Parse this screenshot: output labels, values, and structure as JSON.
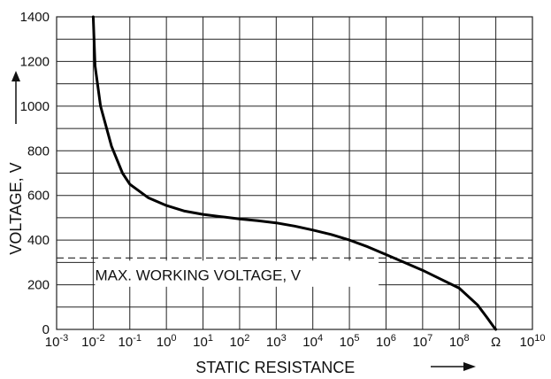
{
  "chart_data": {
    "type": "line",
    "title": "",
    "xlabel": "STATIC RESISTANCE",
    "ylabel": "VOLTAGE, V",
    "x_scale": "log",
    "xlim": [
      -3,
      10
    ],
    "ylim": [
      0,
      1400
    ],
    "grid": true,
    "y_ticks": [
      "0",
      "200",
      "400",
      "600",
      "800",
      "1000",
      "1200",
      "1400"
    ],
    "x_ticks": [
      {
        "base": "10",
        "exp": "-3"
      },
      {
        "base": "10",
        "exp": "-2"
      },
      {
        "base": "10",
        "exp": "-1"
      },
      {
        "base": "10",
        "exp": "0"
      },
      {
        "base": "10",
        "exp": "1"
      },
      {
        "base": "10",
        "exp": "2"
      },
      {
        "base": "10",
        "exp": "3"
      },
      {
        "base": "10",
        "exp": "4"
      },
      {
        "base": "10",
        "exp": "5"
      },
      {
        "base": "10",
        "exp": "6"
      },
      {
        "base": "10",
        "exp": "7"
      },
      {
        "base": "10",
        "exp": "8"
      },
      {
        "base": "Ω",
        "exp": ""
      },
      {
        "base": "10",
        "exp": "10"
      }
    ],
    "series": [
      {
        "x": [
          -2.0,
          -1.95,
          -1.8,
          -1.5,
          -1.2,
          -1.0,
          -0.5,
          0.0,
          0.5,
          1.0,
          1.5,
          2.0,
          2.5,
          3.0,
          3.5,
          4.0,
          4.5,
          5.0,
          5.5,
          6.0,
          6.5,
          7.0,
          7.5,
          8.0,
          8.5,
          8.75,
          8.95,
          9.0
        ],
        "y": [
          1400,
          1180,
          1000,
          820,
          700,
          650,
          590,
          555,
          530,
          515,
          505,
          495,
          487,
          477,
          463,
          445,
          425,
          400,
          370,
          335,
          300,
          265,
          225,
          185,
          110,
          55,
          10,
          0
        ]
      }
    ],
    "reference_line": {
      "y": 320,
      "style": "dashed"
    },
    "annotation": {
      "text": "MAX. WORKING VOLTAGE, V"
    }
  }
}
